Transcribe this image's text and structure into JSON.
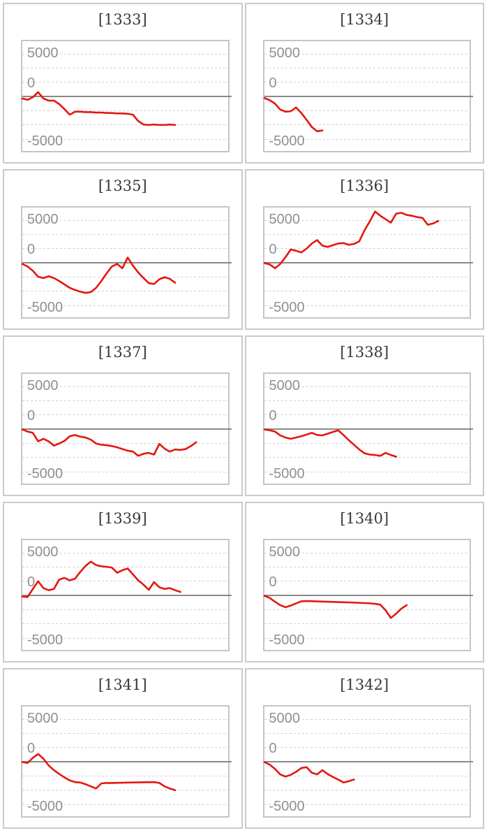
{
  "page": {
    "background": "#ffffff"
  },
  "axis": {
    "labels": [
      "5000",
      "0",
      "-5000"
    ],
    "label_color": "#909090"
  },
  "colors": {
    "line": "#e3170f",
    "zero_line": "#898989",
    "grid": "#d2d2d2",
    "card_border": "#cacaca",
    "plot_border": "#c5c5c5",
    "title": "#383838"
  },
  "chart_data": [
    {
      "type": "line",
      "title": "[1333]",
      "ylim": [
        -6500,
        6500
      ],
      "yticks": [
        5000,
        0,
        -5000
      ],
      "grid": "dashed-horizontal",
      "legend": "none",
      "x_slots": 40,
      "values": [
        -200,
        -350,
        -50,
        550,
        -200,
        -450,
        -450,
        -850,
        -1450,
        -2100,
        -1750,
        -1750,
        -1800,
        -1800,
        -1850,
        -1850,
        -1900,
        -1900,
        -1950,
        -1950,
        -2000,
        -2100,
        -2850,
        -3250,
        -3300,
        -3250,
        -3300,
        -3300,
        -3250,
        -3300
      ]
    },
    {
      "type": "line",
      "title": "[1334]",
      "ylim": [
        -6500,
        6500
      ],
      "yticks": [
        5000,
        0,
        -5000
      ],
      "grid": "dashed-horizontal",
      "legend": "none",
      "x_slots": 40,
      "values": [
        -150,
        -400,
        -800,
        -1500,
        -1750,
        -1700,
        -1250,
        -1900,
        -2700,
        -3550,
        -4050,
        -3950
      ]
    },
    {
      "type": "line",
      "title": "[1335]",
      "ylim": [
        -6500,
        6500
      ],
      "yticks": [
        5000,
        0,
        -5000
      ],
      "grid": "dashed-horizontal",
      "legend": "none",
      "x_slots": 40,
      "values": [
        -100,
        -400,
        -900,
        -1600,
        -1750,
        -1550,
        -1750,
        -2100,
        -2500,
        -2900,
        -3150,
        -3350,
        -3500,
        -3400,
        -2900,
        -2100,
        -1200,
        -400,
        -100,
        -600,
        650,
        -300,
        -1100,
        -1750,
        -2350,
        -2450,
        -1900,
        -1650,
        -1850,
        -2300
      ]
    },
    {
      "type": "line",
      "title": "[1336]",
      "ylim": [
        -6500,
        6500
      ],
      "yticks": [
        5000,
        0,
        -5000
      ],
      "grid": "dashed-horizontal",
      "legend": "none",
      "x_slots": 40,
      "values": [
        0,
        -150,
        -600,
        -100,
        700,
        1600,
        1450,
        1250,
        1700,
        2300,
        2700,
        2050,
        1900,
        2100,
        2300,
        2350,
        2150,
        2250,
        2550,
        3850,
        4900,
        6050,
        5550,
        5150,
        4750,
        5800,
        5900,
        5650,
        5550,
        5400,
        5300,
        4500,
        4650,
        4950
      ]
    },
    {
      "type": "line",
      "title": "[1337]",
      "ylim": [
        -6500,
        6500
      ],
      "yticks": [
        5000,
        0,
        -5000
      ],
      "grid": "dashed-horizontal",
      "legend": "none",
      "x_slots": 40,
      "values": [
        0,
        -250,
        -400,
        -1400,
        -1100,
        -1400,
        -1900,
        -1650,
        -1350,
        -800,
        -650,
        -850,
        -950,
        -1200,
        -1650,
        -1800,
        -1850,
        -1950,
        -2100,
        -2300,
        -2500,
        -2600,
        -3100,
        -2850,
        -2750,
        -2950,
        -1700,
        -2250,
        -2600,
        -2350,
        -2400,
        -2300,
        -1950,
        -1500
      ]
    },
    {
      "type": "line",
      "title": "[1338]",
      "ylim": [
        -6500,
        6500
      ],
      "yticks": [
        5000,
        0,
        -5000
      ],
      "grid": "dashed-horizontal",
      "legend": "none",
      "x_slots": 40,
      "values": [
        0,
        -100,
        -250,
        -700,
        -950,
        -1100,
        -950,
        -800,
        -600,
        -400,
        -650,
        -700,
        -500,
        -300,
        -100,
        -650,
        -1250,
        -1800,
        -2350,
        -2800,
        -2950,
        -3000,
        -3100,
        -2750,
        -3000,
        -3200
      ]
    },
    {
      "type": "line",
      "title": "[1339]",
      "ylim": [
        -6500,
        6500
      ],
      "yticks": [
        5000,
        0,
        -5000
      ],
      "grid": "dashed-horizontal",
      "legend": "none",
      "x_slots": 40,
      "values": [
        -100,
        -150,
        800,
        1700,
        900,
        650,
        800,
        1900,
        2100,
        1800,
        2000,
        2800,
        3500,
        4000,
        3600,
        3450,
        3400,
        3300,
        2700,
        3000,
        3200,
        2500,
        1800,
        1300,
        700,
        1600,
        1000,
        800,
        900,
        650,
        450
      ]
    },
    {
      "type": "line",
      "title": "[1340]",
      "ylim": [
        -6500,
        6500
      ],
      "yticks": [
        5000,
        0,
        -5000
      ],
      "grid": "dashed-horizontal",
      "legend": "none",
      "x_slots": 40,
      "values": [
        0,
        -250,
        -700,
        -1100,
        -1350,
        -1150,
        -900,
        -650,
        -620,
        -640,
        -660,
        -680,
        -700,
        -720,
        -740,
        -760,
        -780,
        -800,
        -830,
        -860,
        -890,
        -950,
        -1050,
        -1700,
        -2600,
        -2100,
        -1500,
        -1100
      ]
    },
    {
      "type": "line",
      "title": "[1341]",
      "ylim": [
        -6500,
        6500
      ],
      "yticks": [
        5000,
        0,
        -5000
      ],
      "grid": "dashed-horizontal",
      "legend": "none",
      "x_slots": 40,
      "values": [
        0,
        -100,
        500,
        950,
        400,
        -400,
        -950,
        -1400,
        -1800,
        -2150,
        -2350,
        -2400,
        -2600,
        -2850,
        -3100,
        -2500,
        -2450,
        -2450,
        -2430,
        -2420,
        -2400,
        -2390,
        -2380,
        -2370,
        -2360,
        -2350,
        -2450,
        -2850,
        -3100,
        -3300
      ]
    },
    {
      "type": "line",
      "title": "[1342]",
      "ylim": [
        -6500,
        6500
      ],
      "yticks": [
        5000,
        0,
        -5000
      ],
      "grid": "dashed-horizontal",
      "legend": "none",
      "x_slots": 40,
      "values": [
        0,
        -300,
        -800,
        -1450,
        -1700,
        -1500,
        -1150,
        -700,
        -600,
        -1250,
        -1450,
        -950,
        -1400,
        -1750,
        -2050,
        -2400,
        -2250,
        -2050
      ]
    }
  ]
}
